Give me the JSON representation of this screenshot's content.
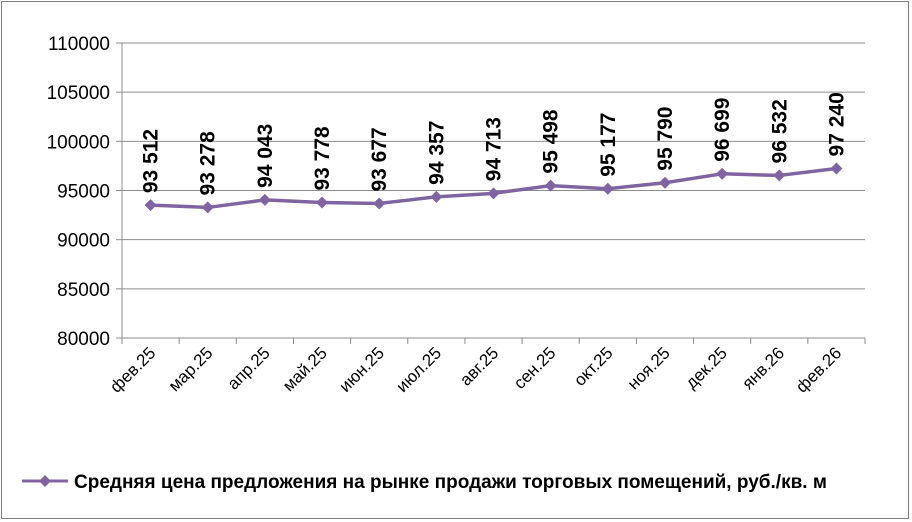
{
  "chart_data": {
    "type": "line",
    "categories": [
      "фев.25",
      "мар.25",
      "апр.25",
      "май.25",
      "июн.25",
      "июл.25",
      "авг.25",
      "сен.25",
      "окт.25",
      "ноя.25",
      "дек.25",
      "янв.26",
      "фев.26"
    ],
    "series": [
      {
        "name": "Средняя цена предложения на рынке продажи торговых помещений,  руб./кв. м",
        "values": [
          93512,
          93278,
          94043,
          93778,
          93677,
          94357,
          94713,
          95498,
          95177,
          95790,
          96699,
          96532,
          97240
        ],
        "data_labels": [
          "93 512",
          "93 278",
          "94 043",
          "93 778",
          "93 677",
          "94 357",
          "94 713",
          "95 498",
          "95 177",
          "95 790",
          "96 699",
          "96 532",
          "97 240"
        ],
        "color": "#8064a2"
      }
    ],
    "ylim": [
      80000,
      110000
    ],
    "yticks": [
      "80000",
      "85000",
      "90000",
      "95000",
      "100000",
      "105000",
      "110000"
    ],
    "ytick_values": [
      80000,
      85000,
      90000,
      95000,
      100000,
      105000,
      110000
    ],
    "grid": true,
    "legend_position": "bottom",
    "title": "",
    "xlabel": "",
    "ylabel": ""
  }
}
